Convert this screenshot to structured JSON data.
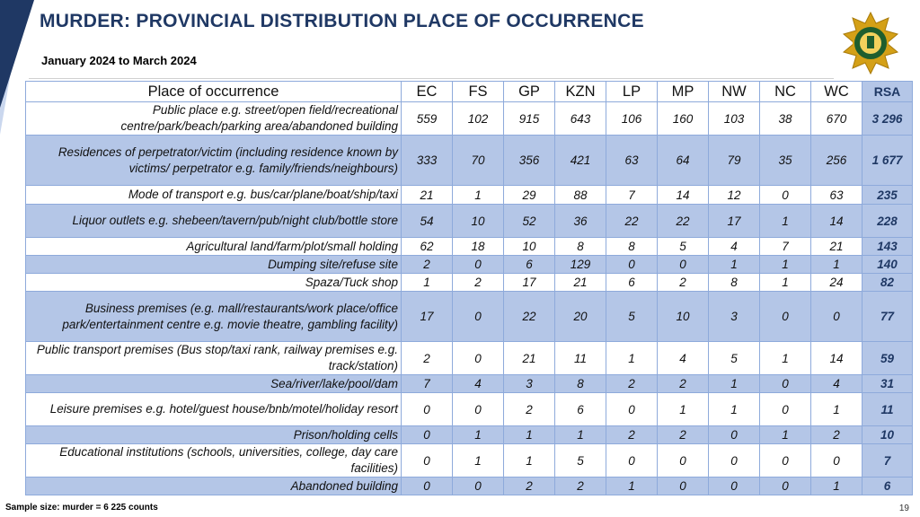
{
  "header": {
    "title": "MURDER: PROVINCIAL DISTRIBUTION PLACE OF OCCURRENCE",
    "subtitle": "January 2024 to March 2024"
  },
  "table": {
    "columns": [
      "Place of occurrence",
      "EC",
      "FS",
      "GP",
      "KZN",
      "LP",
      "MP",
      "NW",
      "NC",
      "WC",
      "RSA"
    ],
    "rows": [
      {
        "place": "Public place e.g. street/open field/recreational centre/park/beach/parking area/abandoned building",
        "values": [
          "559",
          "102",
          "915",
          "643",
          "106",
          "160",
          "103",
          "38",
          "670"
        ],
        "rsa": "3 296",
        "shade": false
      },
      {
        "place": "Residences of perpetrator/victim (including residence known by victims/ perpetrator e.g. family/friends/neighbours)",
        "values": [
          "333",
          "70",
          "356",
          "421",
          "63",
          "64",
          "79",
          "35",
          "256"
        ],
        "rsa": "1 677",
        "shade": true
      },
      {
        "place": "Mode of transport e.g. bus/car/plane/boat/ship/taxi",
        "values": [
          "21",
          "1",
          "29",
          "88",
          "7",
          "14",
          "12",
          "0",
          "63"
        ],
        "rsa": "235",
        "shade": false
      },
      {
        "place": "Liquor outlets e.g. shebeen/tavern/pub/night club/bottle store",
        "values": [
          "54",
          "10",
          "52",
          "36",
          "22",
          "22",
          "17",
          "1",
          "14"
        ],
        "rsa": "228",
        "shade": true
      },
      {
        "place": "Agricultural land/farm/plot/small holding",
        "values": [
          "62",
          "18",
          "10",
          "8",
          "8",
          "5",
          "4",
          "7",
          "21"
        ],
        "rsa": "143",
        "shade": false
      },
      {
        "place": "Dumping site/refuse site",
        "values": [
          "2",
          "0",
          "6",
          "129",
          "0",
          "0",
          "1",
          "1",
          "1"
        ],
        "rsa": "140",
        "shade": true
      },
      {
        "place": "Spaza/Tuck shop",
        "values": [
          "1",
          "2",
          "17",
          "21",
          "6",
          "2",
          "8",
          "1",
          "24"
        ],
        "rsa": "82",
        "shade": false
      },
      {
        "place": "Business premises (e.g. mall/restaurants/work place/office park/entertainment centre e.g. movie theatre, gambling facility)",
        "values": [
          "17",
          "0",
          "22",
          "20",
          "5",
          "10",
          "3",
          "0",
          "0"
        ],
        "rsa": "77",
        "shade": true
      },
      {
        "place": "Public transport premises (Bus stop/taxi rank, railway premises e.g. track/station)",
        "values": [
          "2",
          "0",
          "21",
          "11",
          "1",
          "4",
          "5",
          "1",
          "14"
        ],
        "rsa": "59",
        "shade": false
      },
      {
        "place": "Sea/river/lake/pool/dam",
        "values": [
          "7",
          "4",
          "3",
          "8",
          "2",
          "2",
          "1",
          "0",
          "4"
        ],
        "rsa": "31",
        "shade": true
      },
      {
        "place": "Leisure premises e.g. hotel/guest house/bnb/motel/holiday resort",
        "values": [
          "0",
          "0",
          "2",
          "6",
          "0",
          "1",
          "1",
          "0",
          "1"
        ],
        "rsa": "11",
        "shade": false
      },
      {
        "place": "Prison/holding cells",
        "values": [
          "0",
          "1",
          "1",
          "1",
          "2",
          "2",
          "0",
          "1",
          "2"
        ],
        "rsa": "10",
        "shade": true
      },
      {
        "place": "Educational institutions (schools, universities, college, day care facilities)",
        "values": [
          "0",
          "1",
          "1",
          "5",
          "0",
          "0",
          "0",
          "0",
          "0"
        ],
        "rsa": "7",
        "shade": false
      },
      {
        "place": "Abandoned building",
        "values": [
          "0",
          "0",
          "2",
          "2",
          "1",
          "0",
          "0",
          "0",
          "1"
        ],
        "rsa": "6",
        "shade": true
      }
    ]
  },
  "footer": {
    "note": "Sample size: murder = 6 225 counts",
    "page": "19"
  }
}
